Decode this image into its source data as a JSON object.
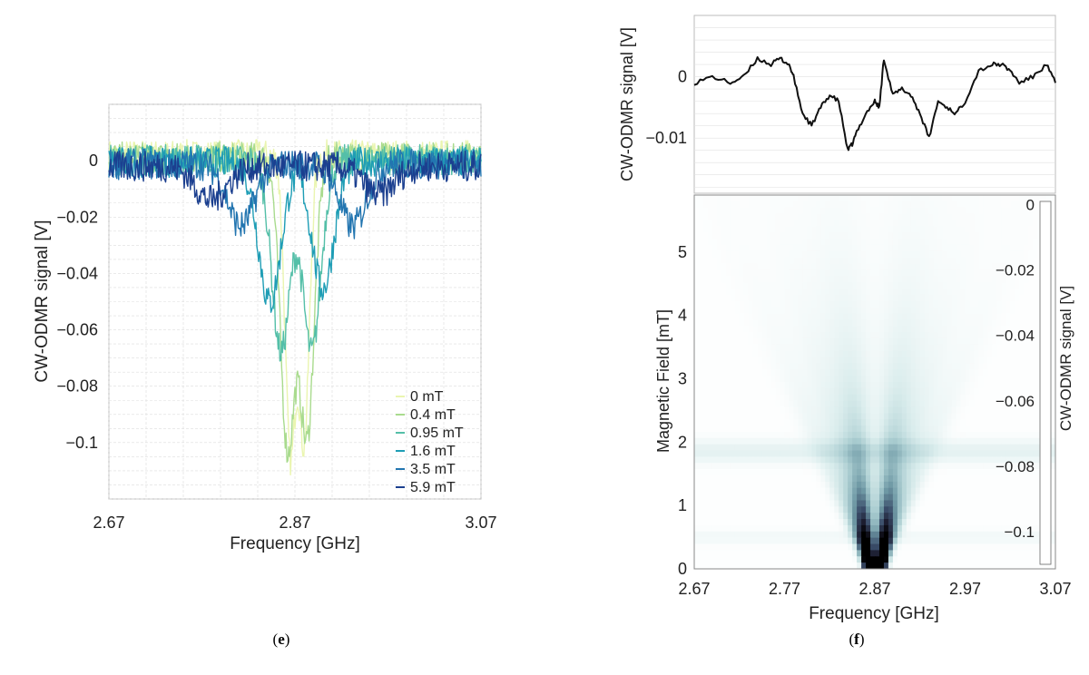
{
  "panels": [
    {
      "id": "e",
      "label": "e"
    },
    {
      "id": "f",
      "label": "f"
    }
  ],
  "colors": {
    "series": [
      "#eaf5b0",
      "#a9db8e",
      "#54bfa8",
      "#1e9db5",
      "#2275b0",
      "#1b3f8f"
    ],
    "colormap": [
      "#ffffff",
      "#d9ecec",
      "#a9ccd0",
      "#6e98a4",
      "#3a4d6a",
      "#1a1a2c",
      "#000000"
    ]
  },
  "chart_data": [
    {
      "type": "line",
      "panel": "e",
      "xlabel": "Frequency [GHz]",
      "ylabel": "CW-ODMR signal [V]",
      "xlim": [
        2.67,
        3.07
      ],
      "ylim": [
        -0.12,
        0.02
      ],
      "xticks": [
        2.67,
        2.87,
        3.07
      ],
      "xtick_labels": [
        "2.67",
        "2.87",
        "3.07"
      ],
      "yticks": [
        0,
        -0.02,
        -0.04,
        -0.06,
        -0.08,
        -0.1
      ],
      "ytick_labels": [
        "0",
        "−0.02",
        "−0.04",
        "−0.06",
        "−0.08",
        "−0.1"
      ],
      "grid": true,
      "legend_position": "bottom-right",
      "series": [
        {
          "name": "0 mT",
          "dips": [
            [
              2.865,
              -0.105
            ],
            [
              2.88,
              -0.1
            ]
          ]
        },
        {
          "name": "0.4 mT",
          "dips": [
            [
              2.862,
              -0.102
            ],
            [
              2.883,
              -0.098
            ]
          ]
        },
        {
          "name": "0.95 mT",
          "dips": [
            [
              2.855,
              -0.068
            ],
            [
              2.888,
              -0.068
            ]
          ]
        },
        {
          "name": "1.6 mT",
          "dips": [
            [
              2.843,
              -0.05
            ],
            [
              2.9,
              -0.045
            ]
          ]
        },
        {
          "name": "3.5 mT",
          "dips": [
            [
              2.812,
              -0.022
            ],
            [
              2.932,
              -0.022
            ]
          ]
        },
        {
          "name": "5.9 mT",
          "dips": [
            [
              2.78,
              -0.012
            ],
            [
              2.96,
              -0.01
            ]
          ]
        }
      ]
    },
    {
      "type": "line",
      "panel": "f-top",
      "xlabel": "",
      "ylabel": "CW-ODMR signal [V]",
      "xlim": [
        2.67,
        3.07
      ],
      "ylim": [
        -0.019,
        0.01
      ],
      "yticks": [
        0,
        -0.01
      ],
      "ytick_labels": [
        "0",
        "−0.01"
      ],
      "grid": true,
      "series": [
        {
          "x": [
            2.67,
            2.69,
            2.71,
            2.725,
            2.74,
            2.755,
            2.765,
            2.775,
            2.78,
            2.79,
            2.8,
            2.81,
            2.82,
            2.83,
            2.84,
            2.845,
            2.85,
            2.86,
            2.87,
            2.875,
            2.88,
            2.89,
            2.9,
            2.91,
            2.92,
            2.93,
            2.94,
            2.95,
            2.96,
            2.97,
            2.985,
            3.0,
            3.01,
            3.02,
            3.03,
            3.045,
            3.06,
            3.07
          ],
          "y": [
            -0.001,
            0.0,
            -0.001,
            0.0,
            0.003,
            0.002,
            0.003,
            0.002,
            0.0,
            -0.006,
            -0.008,
            -0.005,
            -0.003,
            -0.004,
            -0.012,
            -0.011,
            -0.009,
            -0.006,
            -0.004,
            -0.005,
            0.003,
            -0.003,
            -0.002,
            -0.003,
            -0.006,
            -0.01,
            -0.004,
            -0.005,
            -0.006,
            -0.004,
            0.001,
            0.002,
            0.002,
            0.001,
            -0.001,
            0.0,
            0.002,
            -0.001
          ]
        }
      ]
    },
    {
      "type": "heatmap",
      "panel": "f-bottom",
      "xlabel": "Frequency [GHz]",
      "ylabel": "Magnetic Field [mT]",
      "xlim": [
        2.67,
        3.07
      ],
      "ylim": [
        0,
        5.9
      ],
      "xticks": [
        2.67,
        2.77,
        2.87,
        2.97,
        3.07
      ],
      "xtick_labels": [
        "2.67",
        "2.77",
        "2.87",
        "2.97",
        "3.07"
      ],
      "yticks": [
        0,
        1,
        2,
        3,
        4,
        5
      ],
      "ytick_labels": [
        "0",
        "1",
        "2",
        "3",
        "4",
        "5"
      ],
      "colorbar": {
        "label": "CW-ODMR signal [V]",
        "range": [
          -0.11,
          0.001
        ],
        "ticks": [
          0,
          -0.02,
          -0.04,
          -0.06,
          -0.08,
          -0.1
        ],
        "tick_labels": [
          "0",
          "−0.02",
          "−0.04",
          "−0.06",
          "−0.08",
          "−0.1"
        ]
      },
      "center_frequency": 2.87,
      "branch_slopes": [
        0.028,
        0.018,
        0.01,
        0.0045
      ]
    }
  ]
}
